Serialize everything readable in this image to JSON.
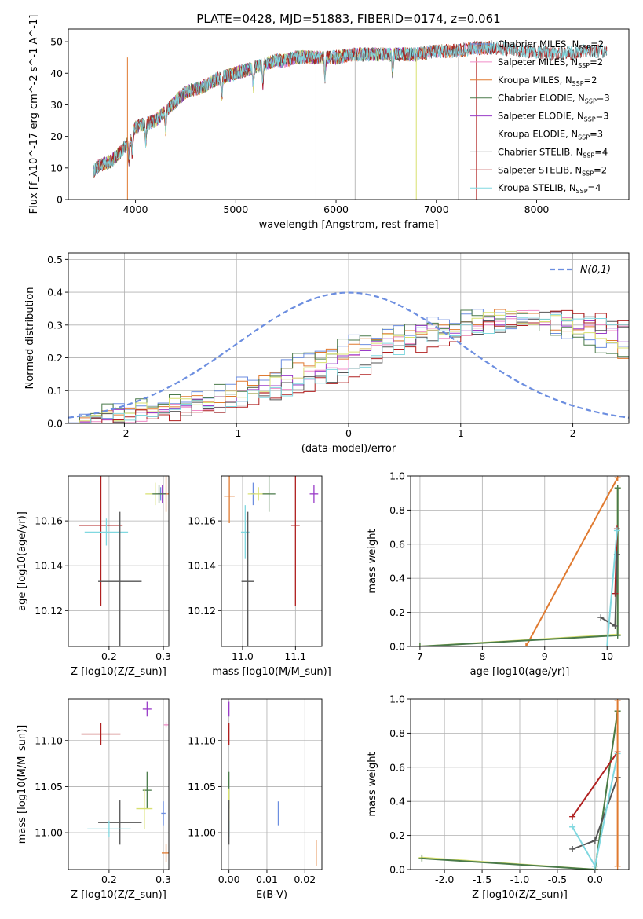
{
  "figure": {
    "title": "PLATE=0428, MJD=51883, FIBERID=0174, z=0.061"
  },
  "colors": {
    "Chabrier MILES": "#6c8ee0",
    "Salpeter MILES": "#f08cc8",
    "Kroupa MILES": "#e07a30",
    "Chabrier ELODIE": "#4a7a4a",
    "Salpeter ELODIE": "#9a3cc8",
    "Kroupa ELODIE": "#d8e070",
    "Chabrier STELIB": "#555555",
    "Salpeter STELIB": "#b02020",
    "Kroupa STELIB": "#80d8e0"
  },
  "chart_data": [
    {
      "type": "line",
      "title": "PLATE=0428, MJD=51883, FIBERID=0174, z=0.061",
      "xlabel": "wavelength [Angstrom, rest frame]",
      "ylabel": "Flux [f_λ10^-17 erg cm^-2 s^-1 A^-1]",
      "xlim": [
        3330,
        8920
      ],
      "ylim": [
        0,
        54
      ],
      "xticks": [
        4000,
        5000,
        6000,
        7000,
        8000
      ],
      "yticks": [
        0,
        10,
        20,
        30,
        40,
        50
      ],
      "grid": false,
      "legend_position": "top-right",
      "continuum": [
        [
          3580,
          9
        ],
        [
          3650,
          11
        ],
        [
          3750,
          12
        ],
        [
          3850,
          15
        ],
        [
          3950,
          19
        ],
        [
          4000,
          23
        ],
        [
          4100,
          24
        ],
        [
          4200,
          25
        ],
        [
          4300,
          28
        ],
        [
          4400,
          31
        ],
        [
          4500,
          34
        ],
        [
          4600,
          35
        ],
        [
          4700,
          36
        ],
        [
          4800,
          38
        ],
        [
          4900,
          39
        ],
        [
          5000,
          40
        ],
        [
          5100,
          41
        ],
        [
          5200,
          42
        ],
        [
          5300,
          43
        ],
        [
          5400,
          44
        ],
        [
          5500,
          44
        ],
        [
          5600,
          45
        ],
        [
          5800,
          45
        ],
        [
          6000,
          45
        ],
        [
          6200,
          46
        ],
        [
          6400,
          46
        ],
        [
          6600,
          46
        ],
        [
          6800,
          46
        ],
        [
          7000,
          47
        ],
        [
          7200,
          47
        ],
        [
          7400,
          48
        ],
        [
          7600,
          48
        ],
        [
          7900,
          47
        ],
        [
          8200,
          46
        ],
        [
          8500,
          47
        ],
        [
          8700,
          47
        ]
      ],
      "series": [
        {
          "name": "Chabrier MILES",
          "nssp": "2",
          "xmax": 7540
        },
        {
          "name": "Salpeter MILES",
          "nssp": "2",
          "xmax": 7540
        },
        {
          "name": "Kroupa MILES",
          "nssp": "2",
          "xmax": 7540
        },
        {
          "name": "Chabrier ELODIE",
          "nssp": "3",
          "xmax": 6800
        },
        {
          "name": "Salpeter ELODIE",
          "nssp": "3",
          "xmax": 6800
        },
        {
          "name": "Kroupa ELODIE",
          "nssp": "3",
          "xmax": 6800
        },
        {
          "name": "Chabrier STELIB",
          "nssp": "4",
          "xmax": 8700
        },
        {
          "name": "Salpeter STELIB",
          "nssp": "2",
          "xmax": 8700
        },
        {
          "name": "Kroupa STELIB",
          "nssp": "4",
          "xmax": 8700
        }
      ],
      "legend_labels": [
        {
          "prefix": "Chabrier MILES, N",
          "sub": "SSP",
          "suffix": "=2"
        },
        {
          "prefix": "Salpeter MILES, N",
          "sub": "SSP",
          "suffix": "=2"
        },
        {
          "prefix": "Kroupa MILES, N",
          "sub": "SSP",
          "suffix": "=2"
        },
        {
          "prefix": "Chabrier ELODIE, N",
          "sub": "SSP",
          "suffix": "=3"
        },
        {
          "prefix": "Salpeter ELODIE, N",
          "sub": "SSP",
          "suffix": "=3"
        },
        {
          "prefix": "Kroupa ELODIE, N",
          "sub": "SSP",
          "suffix": "=3"
        },
        {
          "prefix": "Chabrier STELIB, N",
          "sub": "SSP",
          "suffix": "=4"
        },
        {
          "prefix": "Salpeter STELIB, N",
          "sub": "SSP",
          "suffix": "=2"
        },
        {
          "prefix": "Kroupa STELIB, N",
          "sub": "SSP",
          "suffix": "=4"
        }
      ]
    },
    {
      "type": "area",
      "xlabel": "(data-model)/error",
      "ylabel": "Normed distribution",
      "xlim": [
        -2.5,
        2.5
      ],
      "ylim": [
        0,
        0.52
      ],
      "xticks": [
        -2,
        -1,
        0,
        1,
        2
      ],
      "yticks": [
        0.0,
        0.1,
        0.2,
        0.3,
        0.4,
        0.5
      ],
      "grid": true,
      "legend_position": "top-right",
      "legend": "N(0,1)",
      "gaussian": {
        "mu": 0,
        "sigma": 1,
        "style": "dashed",
        "color": "#6c8ee0"
      },
      "histogram_shape": [
        [
          -2.5,
          0.01
        ],
        [
          -2.2,
          0.025
        ],
        [
          -1.8,
          0.04
        ],
        [
          -1.4,
          0.06
        ],
        [
          -1.0,
          0.09
        ],
        [
          -0.6,
          0.13
        ],
        [
          -0.2,
          0.19
        ],
        [
          0.2,
          0.24
        ],
        [
          0.6,
          0.28
        ],
        [
          1.0,
          0.3
        ],
        [
          1.3,
          0.33
        ],
        [
          1.6,
          0.32
        ],
        [
          2.0,
          0.3
        ],
        [
          2.3,
          0.27
        ],
        [
          2.5,
          0.22
        ]
      ],
      "series_offsets": [
        -0.03,
        0.02,
        -0.01,
        -0.025,
        0.01,
        0.0,
        0.035,
        0.05,
        0.03
      ]
    },
    {
      "type": "scatter",
      "xlabel": "Z [log10(Z/Z_sun)]",
      "ylabel": "age [log10(age/yr)]",
      "xlim": [
        0.125,
        0.31
      ],
      "ylim": [
        10.104,
        10.18
      ],
      "xticks": [
        0.2,
        0.3
      ],
      "yticks": [
        10.12,
        10.14,
        10.16
      ],
      "grid": true,
      "points": [
        {
          "series": "Chabrier MILES",
          "x": 0.295,
          "y": 10.172,
          "xerr": 0.01,
          "yerr": 0.003
        },
        {
          "series": "Kroupa MILES",
          "x": 0.305,
          "y": 10.172,
          "xerr": 0.006,
          "yerr": 0.008
        },
        {
          "series": "Kroupa ELODIE",
          "x": 0.285,
          "y": 10.172,
          "xerr": 0.018,
          "yerr": 0.005
        },
        {
          "series": "Salpeter ELODIE",
          "x": 0.298,
          "y": 10.172,
          "xerr": 0.008,
          "yerr": 0.004
        },
        {
          "series": "Chabrier ELODIE",
          "x": 0.292,
          "y": 10.172,
          "xerr": 0.012,
          "yerr": 0.004
        },
        {
          "series": "Salpeter STELIB",
          "x": 0.185,
          "y": 10.158,
          "xerr": 0.04,
          "yerr": 0.036
        },
        {
          "series": "Kroupa STELIB",
          "x": 0.195,
          "y": 10.155,
          "xerr": 0.04,
          "yerr": 0.006
        },
        {
          "series": "Chabrier STELIB",
          "x": 0.22,
          "y": 10.133,
          "xerr": 0.04,
          "yerr": 0.031
        }
      ]
    },
    {
      "type": "scatter",
      "xlabel": "mass [log10(M/M_sun)]",
      "ylabel": "",
      "xlim": [
        10.96,
        11.15
      ],
      "ylim": [
        10.104,
        10.18
      ],
      "xticks": [
        11.0,
        11.1
      ],
      "yticks": [
        10.12,
        10.14,
        10.16
      ],
      "grid": true,
      "points": [
        {
          "series": "Kroupa MILES",
          "x": 10.975,
          "y": 10.171,
          "xerr": 0.01,
          "yerr": 0.012
        },
        {
          "series": "Chabrier MILES",
          "x": 11.02,
          "y": 10.172,
          "xerr": 0.004,
          "yerr": 0.005
        },
        {
          "series": "Kroupa ELODIE",
          "x": 11.03,
          "y": 10.172,
          "xerr": 0.02,
          "yerr": 0.003
        },
        {
          "series": "Chabrier ELODIE",
          "x": 11.05,
          "y": 10.172,
          "xerr": 0.012,
          "yerr": 0.008
        },
        {
          "series": "Salpeter ELODIE",
          "x": 11.135,
          "y": 10.172,
          "xerr": 0.008,
          "yerr": 0.004
        },
        {
          "series": "Salpeter STELIB",
          "x": 11.1,
          "y": 10.158,
          "xerr": 0.008,
          "yerr": 0.036
        },
        {
          "series": "Kroupa STELIB",
          "x": 11.005,
          "y": 10.155,
          "xerr": 0.008,
          "yerr": 0.012
        },
        {
          "series": "Chabrier STELIB",
          "x": 11.01,
          "y": 10.133,
          "xerr": 0.012,
          "yerr": 0.031
        }
      ]
    },
    {
      "type": "line",
      "xlabel": "age [log10(age/yr)]",
      "ylabel": "mass weight",
      "xlim": [
        6.85,
        10.35
      ],
      "ylim": [
        0,
        1
      ],
      "xticks": [
        7,
        8,
        9,
        10
      ],
      "yticks": [
        0.0,
        0.2,
        0.4,
        0.6,
        0.8,
        1.0
      ],
      "grid": true,
      "series": [
        {
          "name": "Kroupa MILES",
          "x": [
            8.7,
            10.17
          ],
          "y": [
            0.0,
            0.99
          ]
        },
        {
          "name": "Kroupa ELODIE",
          "x": [
            7.0,
            10.17,
            10.17
          ],
          "y": [
            0.0,
            0.07,
            0.93
          ]
        },
        {
          "name": "Chabrier ELODIE",
          "x": [
            7.0,
            10.17,
            10.17
          ],
          "y": [
            0.0,
            0.065,
            0.93
          ]
        },
        {
          "name": "Salpeter STELIB",
          "x": [
            10.13,
            10.16
          ],
          "y": [
            0.31,
            0.69
          ]
        },
        {
          "name": "Chabrier STELIB",
          "x": [
            9.9,
            10.13,
            10.16
          ],
          "y": [
            0.17,
            0.12,
            0.54
          ]
        },
        {
          "name": "Kroupa STELIB",
          "x": [
            10.0,
            10.16
          ],
          "y": [
            0.0,
            0.68
          ]
        }
      ]
    },
    {
      "type": "scatter",
      "xlabel": "Z [log10(Z/Z_sun)]",
      "ylabel": "mass [log10(M/M_sun)]",
      "xlim": [
        0.125,
        0.31
      ],
      "ylim": [
        10.96,
        11.145
      ],
      "xticks": [
        0.2,
        0.3
      ],
      "yticks": [
        11.0,
        11.05,
        11.1
      ],
      "grid": true,
      "points": [
        {
          "series": "Salpeter STELIB",
          "x": 0.185,
          "y": 11.107,
          "xerr": 0.036,
          "yerr": 0.012
        },
        {
          "series": "Salpeter ELODIE",
          "x": 0.27,
          "y": 11.134,
          "xerr": 0.008,
          "yerr": 0.008
        },
        {
          "series": "Salpeter MILES",
          "x": 0.305,
          "y": 11.117,
          "xerr": 0.004,
          "yerr": 0.003
        },
        {
          "series": "Chabrier ELODIE",
          "x": 0.27,
          "y": 11.046,
          "xerr": 0.008,
          "yerr": 0.02
        },
        {
          "series": "Kroupa ELODIE",
          "x": 0.265,
          "y": 11.026,
          "xerr": 0.015,
          "yerr": 0.022
        },
        {
          "series": "Chabrier MILES",
          "x": 0.3,
          "y": 11.021,
          "xerr": 0.004,
          "yerr": 0.013
        },
        {
          "series": "Chabrier STELIB",
          "x": 0.22,
          "y": 11.011,
          "xerr": 0.04,
          "yerr": 0.024
        },
        {
          "series": "Kroupa STELIB",
          "x": 0.2,
          "y": 11.004,
          "xerr": 0.04,
          "yerr": 0.009
        },
        {
          "series": "Kroupa MILES",
          "x": 0.305,
          "y": 10.978,
          "xerr": 0.008,
          "yerr": 0.01
        }
      ]
    },
    {
      "type": "scatter",
      "xlabel": "E(B-V)",
      "ylabel": "",
      "xlim": [
        -0.002,
        0.0245
      ],
      "ylim": [
        10.96,
        11.145
      ],
      "xticks": [
        0.0,
        0.01,
        0.02
      ],
      "yticks": [
        11.0,
        11.05,
        11.1
      ],
      "grid": true,
      "points": [
        {
          "series": "Salpeter ELODIE",
          "x": 0.0,
          "y": 11.134,
          "xerr": 0.0,
          "yerr": 0.008
        },
        {
          "series": "Salpeter STELIB",
          "x": 0.0,
          "y": 11.107,
          "xerr": 0.0,
          "yerr": 0.012
        },
        {
          "series": "Chabrier ELODIE",
          "x": 0.0,
          "y": 11.046,
          "xerr": 0.0,
          "yerr": 0.02
        },
        {
          "series": "Kroupa ELODIE",
          "x": 0.0,
          "y": 11.026,
          "xerr": 0.0,
          "yerr": 0.022
        },
        {
          "series": "Kroupa STELIB",
          "x": 0.0,
          "y": 11.004,
          "xerr": 0.0,
          "yerr": 0.009
        },
        {
          "series": "Chabrier STELIB",
          "x": 0.0,
          "y": 11.011,
          "xerr": 0.0,
          "yerr": 0.024
        },
        {
          "series": "Chabrier MILES",
          "x": 0.013,
          "y": 11.021,
          "xerr": 0.0,
          "yerr": 0.013
        },
        {
          "series": "Kroupa MILES",
          "x": 0.023,
          "y": 10.978,
          "xerr": 0.0,
          "yerr": 0.014
        }
      ]
    },
    {
      "type": "line",
      "xlabel": "Z [log10(Z/Z_sun)]",
      "ylabel": "mass weight",
      "xlim": [
        -2.45,
        0.45
      ],
      "ylim": [
        0,
        1
      ],
      "xticks": [
        -2.0,
        -1.5,
        -1.0,
        -0.5,
        0.0
      ],
      "yticks": [
        0.0,
        0.2,
        0.4,
        0.6,
        0.8,
        1.0
      ],
      "grid": true,
      "series": [
        {
          "name": "Kroupa ELODIE",
          "x": [
            -2.3,
            0.0,
            0.3
          ],
          "y": [
            0.07,
            0.0,
            0.93
          ]
        },
        {
          "name": "Chabrier ELODIE",
          "x": [
            -2.3,
            0.0,
            0.3
          ],
          "y": [
            0.065,
            0.0,
            0.93
          ]
        },
        {
          "name": "Salpeter STELIB",
          "x": [
            -0.3,
            0.3
          ],
          "y": [
            0.31,
            0.69
          ]
        },
        {
          "name": "Chabrier STELIB",
          "x": [
            -0.3,
            0.0,
            0.3
          ],
          "y": [
            0.12,
            0.17,
            0.54
          ]
        },
        {
          "name": "Kroupa STELIB",
          "x": [
            -0.3,
            0.0,
            0.3
          ],
          "y": [
            0.25,
            0.02,
            0.68
          ]
        },
        {
          "name": "Kroupa MILES",
          "x": [
            0.3,
            0.3
          ],
          "y": [
            0.02,
            0.99
          ]
        }
      ]
    }
  ]
}
